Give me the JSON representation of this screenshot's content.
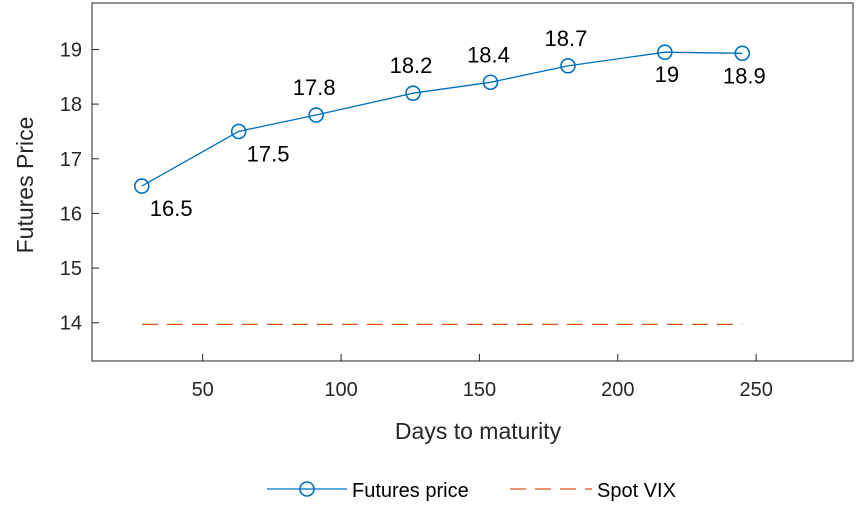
{
  "chart_data": {
    "type": "line",
    "title": "",
    "xlabel": "Days to maturity",
    "ylabel": "Futures Price",
    "xlim": [
      10,
      285
    ],
    "ylim": [
      13.3,
      19.85
    ],
    "xticks": [
      50,
      100,
      150,
      200,
      250
    ],
    "yticks": [
      14,
      15,
      16,
      17,
      18,
      19
    ],
    "grid": false,
    "legend": {
      "placement": "bottom",
      "entries": [
        "Futures price",
        "Spot VIX"
      ]
    },
    "series": [
      {
        "name": "Futures price",
        "style": "solid line with circle markers",
        "color": "#0072BD",
        "x": [
          28,
          63,
          91,
          126,
          154,
          182,
          217,
          245
        ],
        "y": [
          16.5,
          17.5,
          17.8,
          18.2,
          18.4,
          18.7,
          18.95,
          18.93
        ],
        "labels": [
          "16.5",
          "17.5",
          "17.8",
          "18.2",
          "18.4",
          "18.7",
          "19",
          "18.9"
        ]
      },
      {
        "name": "Spot VIX",
        "style": "dashed line",
        "color": "#D95319",
        "x": [
          28,
          245
        ],
        "y": [
          13.97,
          13.97
        ]
      }
    ]
  }
}
